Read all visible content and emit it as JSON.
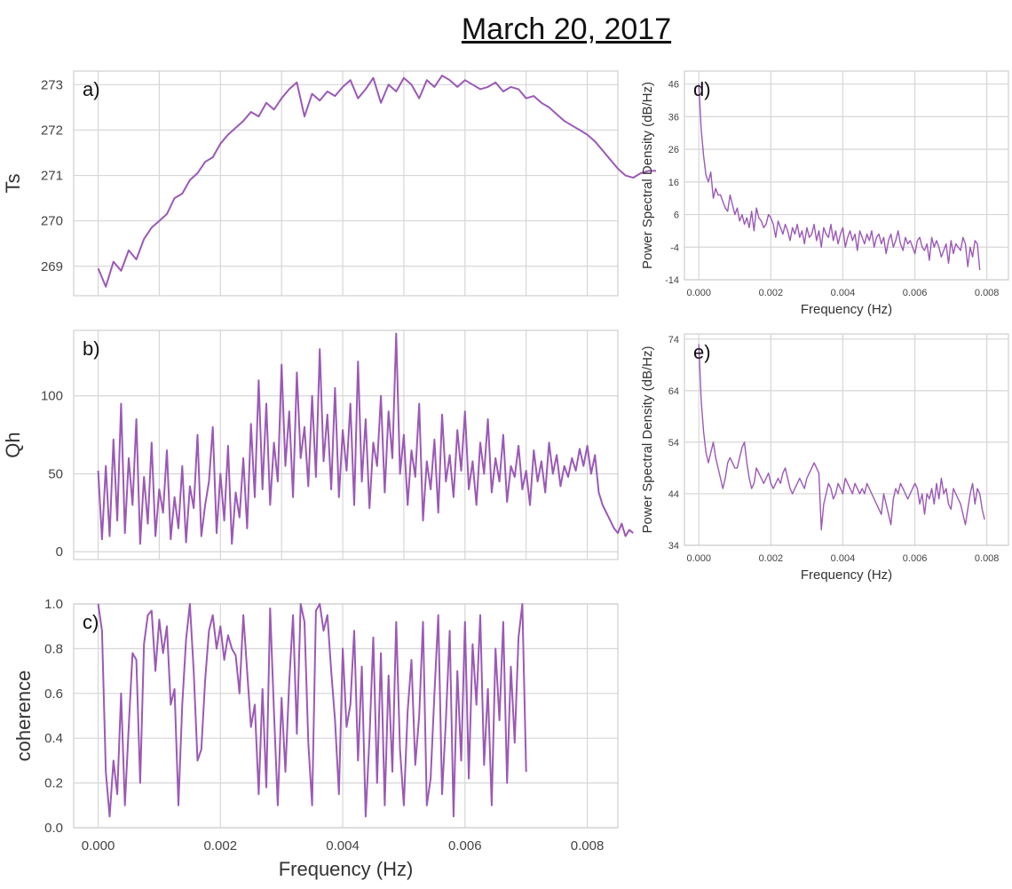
{
  "figure_title": "March 20, 2017",
  "chart_data": [
    {
      "id": "a",
      "type": "line",
      "panel_label": "a)",
      "ylabel": "Ts",
      "xlabel": "",
      "xlim": [
        -0.0004,
        0.0085
      ],
      "ylim": [
        268.35,
        273.3
      ],
      "xticks": [
        0.0,
        0.001,
        0.002,
        0.003,
        0.004,
        0.005,
        0.006,
        0.007,
        0.008
      ],
      "xtick_labels": [
        "",
        "",
        "",
        "",
        "",
        "",
        "",
        "",
        ""
      ],
      "yticks": [
        269,
        270,
        271,
        272,
        273
      ],
      "ytick_labels": [
        "269",
        "270",
        "271",
        "272",
        "273"
      ],
      "grid": true,
      "color": "#9b59b6",
      "x_start": 0.0,
      "x_step": 0.000125,
      "values": [
        268.95,
        268.55,
        269.1,
        268.9,
        269.35,
        269.15,
        269.6,
        269.85,
        270.0,
        270.15,
        270.5,
        270.6,
        270.9,
        271.05,
        271.3,
        271.4,
        271.7,
        271.9,
        272.05,
        272.2,
        272.4,
        272.3,
        272.6,
        272.45,
        272.7,
        272.9,
        273.05,
        272.3,
        272.8,
        272.65,
        272.85,
        272.75,
        272.95,
        273.1,
        272.7,
        272.9,
        273.15,
        272.6,
        273.0,
        272.85,
        273.15,
        273.0,
        272.7,
        273.1,
        272.95,
        273.2,
        273.1,
        272.95,
        273.1,
        273.0,
        272.9,
        272.95,
        273.05,
        272.85,
        272.95,
        272.9,
        272.7,
        272.75,
        272.6,
        272.5,
        272.35,
        272.2,
        272.1,
        272.0,
        271.9,
        271.75,
        271.55,
        271.35,
        271.15,
        271.0,
        270.95,
        271.05,
        271.1,
        271.1
      ]
    },
    {
      "id": "b",
      "type": "line",
      "panel_label": "b)",
      "ylabel": "Qh",
      "xlabel": "",
      "xlim": [
        -0.0004,
        0.0085
      ],
      "ylim": [
        -5,
        142
      ],
      "xticks": [
        0.0,
        0.001,
        0.002,
        0.003,
        0.004,
        0.005,
        0.006,
        0.007,
        0.008
      ],
      "xtick_labels": [
        "",
        "",
        "",
        "",
        "",
        "",
        "",
        "",
        ""
      ],
      "yticks": [
        0,
        50,
        100
      ],
      "ytick_labels": [
        "0",
        "50",
        "100"
      ],
      "grid": true,
      "color": "#9b59b6",
      "x_start": 0.0,
      "x_step": 6.25e-05,
      "values": [
        52,
        8,
        55,
        10,
        72,
        20,
        95,
        12,
        60,
        30,
        85,
        5,
        48,
        18,
        70,
        10,
        40,
        25,
        65,
        8,
        35,
        15,
        55,
        6,
        42,
        28,
        75,
        10,
        30,
        45,
        80,
        12,
        50,
        20,
        68,
        5,
        38,
        22,
        60,
        15,
        82,
        35,
        110,
        40,
        95,
        30,
        70,
        45,
        120,
        55,
        90,
        35,
        115,
        60,
        80,
        42,
        100,
        48,
        130,
        58,
        88,
        40,
        105,
        35,
        78,
        52,
        95,
        30,
        122,
        45,
        85,
        28,
        70,
        55,
        100,
        38,
        90,
        60,
        140,
        50,
        75,
        30,
        65,
        48,
        95,
        20,
        58,
        40,
        72,
        25,
        88,
        45,
        62,
        35,
        78,
        52,
        90,
        40,
        58,
        30,
        70,
        50,
        85,
        38,
        60,
        45,
        75,
        32,
        55,
        48,
        68,
        40,
        52,
        30,
        65,
        45,
        58,
        38,
        70,
        50,
        62,
        42,
        55,
        48,
        60,
        52,
        66,
        55,
        68,
        50,
        62,
        38,
        30,
        25,
        20,
        15,
        12,
        18,
        10,
        14,
        12
      ]
    },
    {
      "id": "c",
      "type": "line",
      "panel_label": "c)",
      "ylabel": "coherence",
      "xlabel": "Frequency (Hz)",
      "xlim": [
        -0.0004,
        0.0085
      ],
      "ylim": [
        0.0,
        1.0
      ],
      "xticks": [
        0.0,
        0.002,
        0.004,
        0.006,
        0.008
      ],
      "xtick_labels": [
        "0.000",
        "0.002",
        "0.004",
        "0.006",
        "0.008"
      ],
      "yticks": [
        0.0,
        0.2,
        0.4,
        0.6,
        0.8,
        1.0
      ],
      "ytick_labels": [
        "0.0",
        "0.2",
        "0.4",
        "0.6",
        "0.8",
        "1.0"
      ],
      "grid": true,
      "color": "#9b59b6",
      "x_start": 0.0,
      "x_step": 6.25e-05,
      "values": [
        1.0,
        0.88,
        0.25,
        0.05,
        0.3,
        0.15,
        0.6,
        0.1,
        0.45,
        0.78,
        0.75,
        0.2,
        0.82,
        0.95,
        0.97,
        0.7,
        0.93,
        0.78,
        0.9,
        0.55,
        0.62,
        0.1,
        0.55,
        0.84,
        1.0,
        0.7,
        0.3,
        0.35,
        0.66,
        0.88,
        0.95,
        0.8,
        0.9,
        0.75,
        0.86,
        0.8,
        0.77,
        0.6,
        0.95,
        0.7,
        0.45,
        0.55,
        0.15,
        0.62,
        0.18,
        0.98,
        0.52,
        0.1,
        0.58,
        0.25,
        0.65,
        0.95,
        0.42,
        1.0,
        0.92,
        0.38,
        0.1,
        0.97,
        1.0,
        0.88,
        0.95,
        0.7,
        0.48,
        0.15,
        0.8,
        0.45,
        0.55,
        0.88,
        0.3,
        0.72,
        0.05,
        0.4,
        0.85,
        0.2,
        0.78,
        0.1,
        0.68,
        0.25,
        0.92,
        0.35,
        0.1,
        0.52,
        0.75,
        0.28,
        0.5,
        0.92,
        0.1,
        0.22,
        0.6,
        0.95,
        0.15,
        0.48,
        0.88,
        0.05,
        0.7,
        0.3,
        0.92,
        0.22,
        0.82,
        0.55,
        0.95,
        0.28,
        0.62,
        0.1,
        0.8,
        0.48,
        0.92,
        0.2,
        0.72,
        0.38,
        0.85,
        1.0,
        0.25
      ]
    },
    {
      "id": "d",
      "type": "line",
      "panel_label": "d)",
      "ylabel": "Power Spectral Density (dB/Hz)",
      "xlabel": "Frequency (Hz)",
      "xlim": [
        -0.0004,
        0.0086
      ],
      "ylim": [
        -14,
        50
      ],
      "xticks": [
        0.0,
        0.002,
        0.004,
        0.006,
        0.008
      ],
      "xtick_labels": [
        "0.000",
        "0.002",
        "0.004",
        "0.006",
        "0.008"
      ],
      "yticks": [
        -14,
        -4,
        6,
        16,
        26,
        36,
        46
      ],
      "ytick_labels": [
        "-14",
        "-4",
        "6",
        "16",
        "26",
        "36",
        "46"
      ],
      "grid": true,
      "color": "#9b59b6",
      "x_start": 0.0,
      "x_step": 6.67e-05,
      "values": [
        46,
        32,
        24,
        18,
        16,
        19,
        11,
        14,
        12,
        12,
        10,
        8,
        7,
        12,
        9,
        6,
        8,
        4,
        6,
        3,
        5,
        2,
        7,
        1,
        8,
        5,
        4,
        2,
        3,
        6,
        5,
        3,
        -1,
        4,
        2,
        0,
        3,
        1,
        -2,
        2,
        0,
        3,
        -1,
        1,
        -3,
        2,
        -1,
        0,
        3,
        -2,
        1,
        -4,
        2,
        0,
        -1,
        3,
        -2,
        1,
        -3,
        0,
        2,
        -4,
        -1,
        1,
        -2,
        0,
        -5,
        1,
        -1,
        -3,
        0,
        -2,
        1,
        -4,
        -1,
        0,
        -3,
        -1,
        -6,
        -2,
        0,
        -4,
        -2,
        1,
        -3,
        -5,
        -1,
        -3,
        -2,
        -4,
        -6,
        -2,
        -1,
        -4,
        -5,
        -3,
        -8,
        -1,
        -4,
        -2,
        -4,
        -7,
        -5,
        -3,
        -9,
        -2,
        -6,
        -3,
        -4,
        -5,
        -1,
        -3,
        -10,
        -4,
        -7,
        -2,
        -3,
        -11
      ]
    },
    {
      "id": "e",
      "type": "line",
      "panel_label": "e)",
      "ylabel": "Power Spectral Density (dB/Hz)",
      "xlabel": "Frequency (Hz)",
      "xlim": [
        -0.0004,
        0.0086
      ],
      "ylim": [
        34,
        75
      ],
      "xticks": [
        0.0,
        0.002,
        0.004,
        0.006,
        0.008
      ],
      "xtick_labels": [
        "0.000",
        "0.002",
        "0.004",
        "0.006",
        "0.008"
      ],
      "yticks": [
        34,
        44,
        54,
        64,
        74
      ],
      "ytick_labels": [
        "34",
        "44",
        "54",
        "64",
        "74"
      ],
      "grid": true,
      "color": "#9b59b6",
      "x_start": 0.0,
      "x_step": 6.67e-05,
      "values": [
        73,
        62,
        56,
        52,
        50,
        52,
        54,
        51,
        49,
        47,
        45,
        47,
        50,
        51,
        50,
        49,
        49,
        51,
        53,
        54,
        50,
        47,
        45,
        46,
        49,
        48,
        47,
        46,
        47,
        48,
        46,
        45,
        46,
        47,
        46,
        48,
        49,
        47,
        45,
        44,
        45,
        46,
        47,
        46,
        45,
        47,
        48,
        49,
        50,
        49,
        48,
        37,
        42,
        44,
        46,
        45,
        43,
        44,
        46,
        45,
        44,
        47,
        46,
        45,
        44,
        46,
        45,
        44,
        45,
        44,
        46,
        45,
        44,
        43,
        42,
        41,
        40,
        44,
        42,
        40,
        38,
        43,
        45,
        44,
        46,
        45,
        44,
        43,
        44,
        45,
        46,
        45,
        42,
        44,
        40,
        44,
        43,
        45,
        42,
        46,
        43,
        47,
        44,
        45,
        42,
        41,
        45,
        44,
        43,
        42,
        40,
        38,
        41,
        44,
        46,
        42,
        45,
        44,
        41,
        39
      ]
    }
  ]
}
